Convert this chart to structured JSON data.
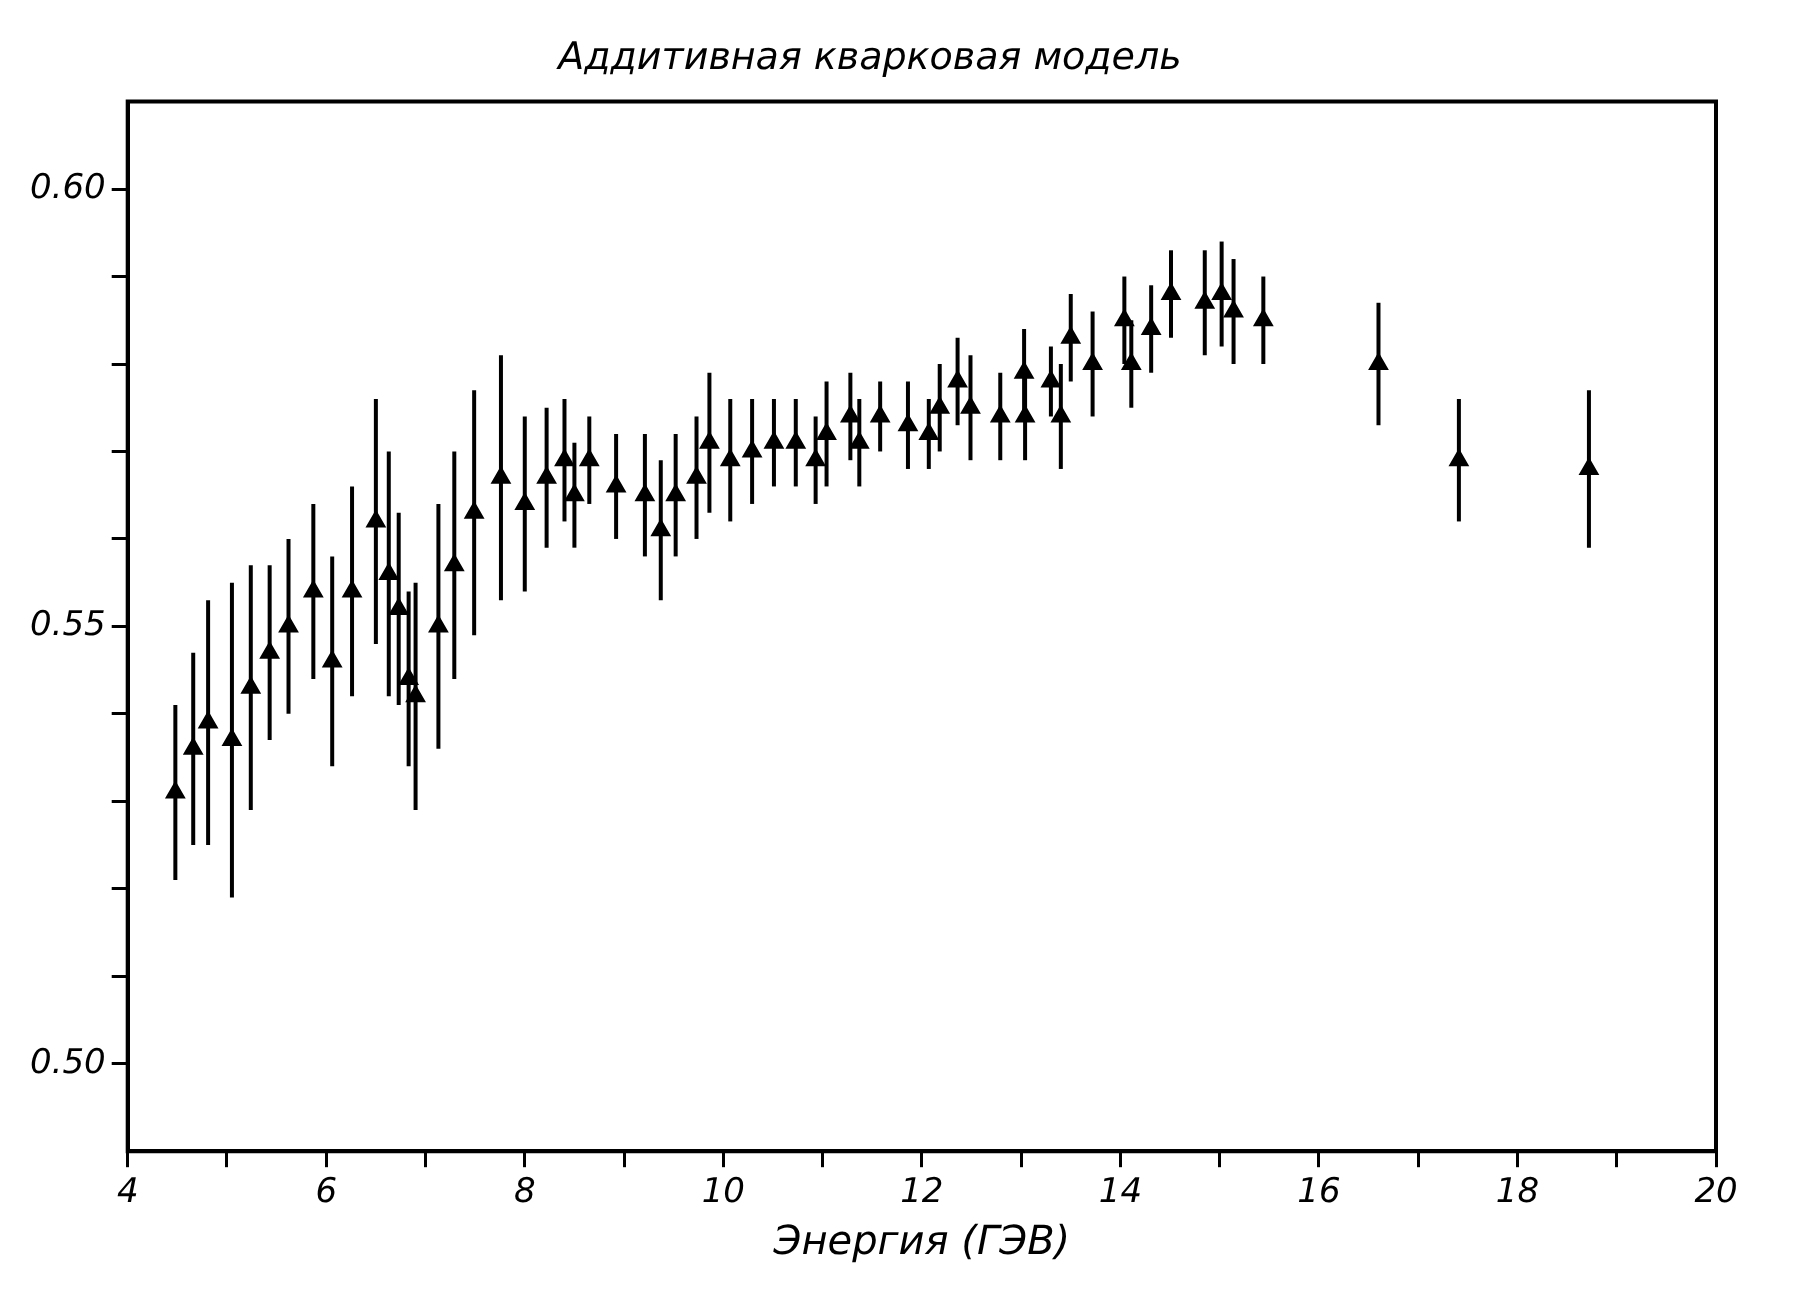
{
  "chart_data": {
    "type": "scatter",
    "title": "Аддитивная кварковая модель",
    "xlabel": "Энергия (ГЭВ)",
    "xlim": [
      4,
      20
    ],
    "ylim": [
      0.49,
      0.61
    ],
    "xticks": [
      4,
      {
        "value": 5,
        "label": null
      },
      6,
      {
        "value": 7,
        "label": null
      },
      8,
      {
        "value": 9,
        "label": null
      },
      10,
      {
        "value": 11,
        "label": null
      },
      12,
      {
        "value": 13,
        "label": null
      },
      14,
      {
        "value": 15,
        "label": null
      },
      16,
      {
        "value": 17,
        "label": null
      },
      18,
      {
        "value": 19,
        "label": null
      },
      20
    ],
    "yticks": [
      {
        "value": 0.5,
        "label": "0.50"
      },
      {
        "value": 0.51,
        "label": null
      },
      {
        "value": 0.52,
        "label": null
      },
      {
        "value": 0.53,
        "label": null
      },
      {
        "value": 0.54,
        "label": null
      },
      {
        "value": 0.55,
        "label": "0.55"
      },
      {
        "value": 0.56,
        "label": null
      },
      {
        "value": 0.57,
        "label": null
      },
      {
        "value": 0.58,
        "label": null
      },
      {
        "value": 0.59,
        "label": null
      },
      {
        "value": 0.6,
        "label": "0.60"
      }
    ],
    "grid": false,
    "legend": false,
    "marker": "triangle",
    "series": [
      {
        "color": "#000000",
        "x": [
          4.48,
          4.66,
          4.81,
          5.05,
          5.24,
          5.43,
          5.62,
          5.87,
          6.06,
          6.26,
          6.5,
          6.63,
          6.73,
          6.83,
          6.9,
          7.13,
          7.29,
          7.49,
          7.76,
          8.0,
          8.22,
          8.4,
          8.5,
          8.65,
          8.92,
          9.21,
          9.37,
          9.52,
          9.73,
          9.86,
          10.07,
          10.29,
          10.51,
          10.73,
          10.93,
          11.04,
          11.28,
          11.37,
          11.58,
          11.86,
          12.07,
          12.18,
          12.36,
          12.49,
          12.79,
          13.03,
          13.04,
          13.3,
          13.4,
          13.5,
          13.72,
          14.04,
          14.11,
          14.31,
          14.51,
          14.85,
          15.02,
          15.14,
          15.44,
          16.6,
          17.41,
          18.72
        ],
        "values": [
          0.531,
          0.536,
          0.539,
          0.537,
          0.543,
          0.547,
          0.55,
          0.554,
          0.546,
          0.554,
          0.562,
          0.556,
          0.552,
          0.544,
          0.542,
          0.55,
          0.557,
          0.563,
          0.567,
          0.564,
          0.567,
          0.569,
          0.565,
          0.569,
          0.566,
          0.565,
          0.561,
          0.565,
          0.567,
          0.571,
          0.569,
          0.57,
          0.571,
          0.571,
          0.569,
          0.572,
          0.574,
          0.571,
          0.574,
          0.573,
          0.572,
          0.575,
          0.578,
          0.575,
          0.574,
          0.579,
          0.574,
          0.578,
          0.574,
          0.583,
          0.58,
          0.585,
          0.58,
          0.584,
          0.588,
          0.587,
          0.588,
          0.586,
          0.585,
          0.58,
          0.569,
          0.568
        ],
        "errors": [
          0.01,
          0.011,
          0.014,
          0.018,
          0.014,
          0.01,
          0.01,
          0.01,
          0.012,
          0.012,
          0.014,
          0.014,
          0.011,
          0.01,
          0.013,
          0.014,
          0.013,
          0.014,
          0.014,
          0.01,
          0.008,
          0.007,
          0.006,
          0.005,
          0.006,
          0.007,
          0.008,
          0.007,
          0.007,
          0.008,
          0.007,
          0.006,
          0.005,
          0.005,
          0.005,
          0.006,
          0.005,
          0.005,
          0.004,
          0.005,
          0.004,
          0.005,
          0.005,
          0.006,
          0.005,
          0.005,
          0.005,
          0.004,
          0.006,
          0.005,
          0.006,
          0.005,
          0.005,
          0.005,
          0.005,
          0.006,
          0.006,
          0.006,
          0.005,
          0.007,
          0.007,
          0.009
        ]
      }
    ]
  }
}
